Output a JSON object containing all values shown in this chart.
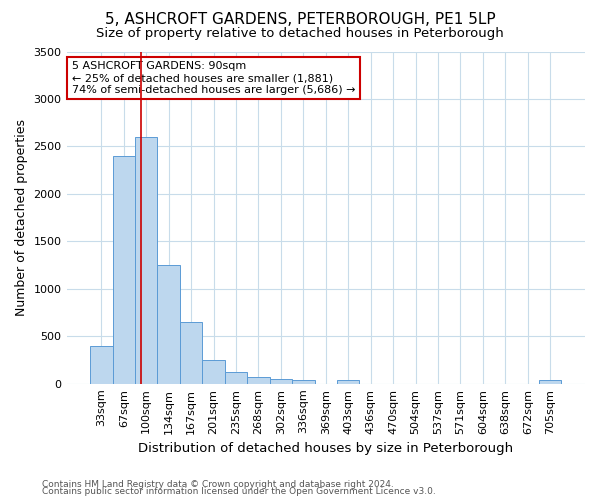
{
  "title": "5, ASHCROFT GARDENS, PETERBOROUGH, PE1 5LP",
  "subtitle": "Size of property relative to detached houses in Peterborough",
  "xlabel": "Distribution of detached houses by size in Peterborough",
  "ylabel": "Number of detached properties",
  "categories": [
    "33sqm",
    "67sqm",
    "100sqm",
    "134sqm",
    "167sqm",
    "201sqm",
    "235sqm",
    "268sqm",
    "302sqm",
    "336sqm",
    "369sqm",
    "403sqm",
    "436sqm",
    "470sqm",
    "504sqm",
    "537sqm",
    "571sqm",
    "604sqm",
    "638sqm",
    "672sqm",
    "705sqm"
  ],
  "values": [
    400,
    2400,
    2600,
    1250,
    650,
    250,
    125,
    75,
    50,
    40,
    0,
    40,
    0,
    0,
    0,
    0,
    0,
    0,
    0,
    0,
    40
  ],
  "bar_color": "#bdd7ee",
  "bar_edge_color": "#5b9bd5",
  "vline_color": "#cc0000",
  "vline_pos": 1.75,
  "ylim": [
    0,
    3500
  ],
  "yticks": [
    0,
    500,
    1000,
    1500,
    2000,
    2500,
    3000,
    3500
  ],
  "annotation_text": "5 ASHCROFT GARDENS: 90sqm\n← 25% of detached houses are smaller (1,881)\n74% of semi-detached houses are larger (5,686) →",
  "annotation_box_edge": "#cc0000",
  "footnote1": "Contains HM Land Registry data © Crown copyright and database right 2024.",
  "footnote2": "Contains public sector information licensed under the Open Government Licence v3.0.",
  "bg_color": "#ffffff",
  "grid_color": "#c8dcea",
  "title_fontsize": 11,
  "subtitle_fontsize": 9.5,
  "xlabel_fontsize": 9.5,
  "ylabel_fontsize": 9,
  "tick_fontsize": 8,
  "annot_fontsize": 8,
  "footnote_fontsize": 6.5
}
